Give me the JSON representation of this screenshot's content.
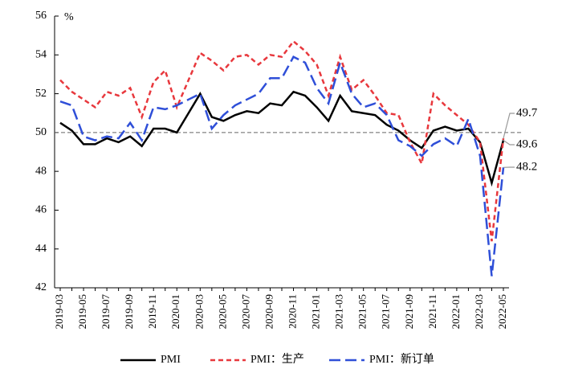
{
  "chart_data": {
    "type": "line",
    "y_unit": "%",
    "categories": [
      "2019-03",
      null,
      "2019-05",
      null,
      "2019-07",
      null,
      "2019-09",
      null,
      "2019-11",
      null,
      "2020-01",
      null,
      "2020-03",
      null,
      "2020-05",
      null,
      "2020-07",
      null,
      "2020-09",
      null,
      "2020-11",
      null,
      "2021-01",
      null,
      "2021-03",
      null,
      "2021-05",
      null,
      "2021-07",
      null,
      "2021-09",
      null,
      "2021-11",
      null,
      "2022-01",
      null,
      "2022-03",
      null,
      "2022-05"
    ],
    "series": [
      {
        "name": "PMI",
        "color": "#000000",
        "dash": "none",
        "values": [
          50.5,
          50.1,
          49.4,
          49.4,
          49.7,
          49.5,
          49.8,
          49.3,
          50.2,
          50.2,
          50.0,
          51.0,
          52.0,
          50.8,
          50.6,
          50.9,
          51.1,
          51.0,
          51.5,
          51.4,
          52.1,
          51.9,
          51.3,
          50.6,
          51.9,
          51.1,
          51.0,
          50.9,
          50.4,
          50.1,
          49.6,
          49.2,
          50.1,
          50.3,
          50.1,
          50.2,
          49.5,
          47.4,
          49.6
        ]
      },
      {
        "name": "PMI：生产",
        "color": "#e8383d",
        "dash": "6 4",
        "values": [
          52.7,
          52.1,
          51.7,
          51.3,
          52.1,
          51.9,
          52.3,
          50.8,
          52.6,
          53.2,
          51.3,
          52.7,
          54.1,
          53.7,
          53.2,
          53.9,
          54.0,
          53.5,
          54.0,
          53.9,
          54.7,
          54.2,
          53.5,
          51.9,
          53.9,
          52.2,
          52.7,
          51.9,
          51.0,
          50.9,
          49.5,
          48.4,
          52.0,
          51.4,
          50.9,
          50.4,
          49.5,
          44.4,
          49.7
        ]
      },
      {
        "name": "PMI：新订单",
        "color": "#2f4fd8",
        "dash": "14 6",
        "values": [
          51.6,
          51.4,
          49.8,
          49.6,
          49.8,
          49.7,
          50.5,
          49.6,
          51.3,
          51.2,
          51.4,
          51.7,
          52.0,
          50.2,
          50.9,
          51.4,
          51.7,
          52.0,
          52.8,
          52.8,
          53.9,
          53.6,
          52.3,
          51.5,
          53.6,
          52.0,
          51.3,
          51.5,
          50.9,
          49.6,
          49.3,
          48.8,
          49.4,
          49.7,
          49.3,
          50.7,
          48.8,
          42.6,
          48.2
        ]
      }
    ],
    "ylim": [
      42,
      56
    ],
    "yticks": [
      42,
      44,
      46,
      48,
      50,
      52,
      54,
      56
    ],
    "reference_line": 50,
    "annotations": [
      {
        "label": "49.7",
        "value": 49.7,
        "color": "#e8383d"
      },
      {
        "label": "49.6",
        "value": 49.6,
        "color": "#6a4fb0"
      },
      {
        "label": "48.2",
        "value": 48.2,
        "color": "#3d6b5c"
      }
    ],
    "legend": "bottom"
  }
}
